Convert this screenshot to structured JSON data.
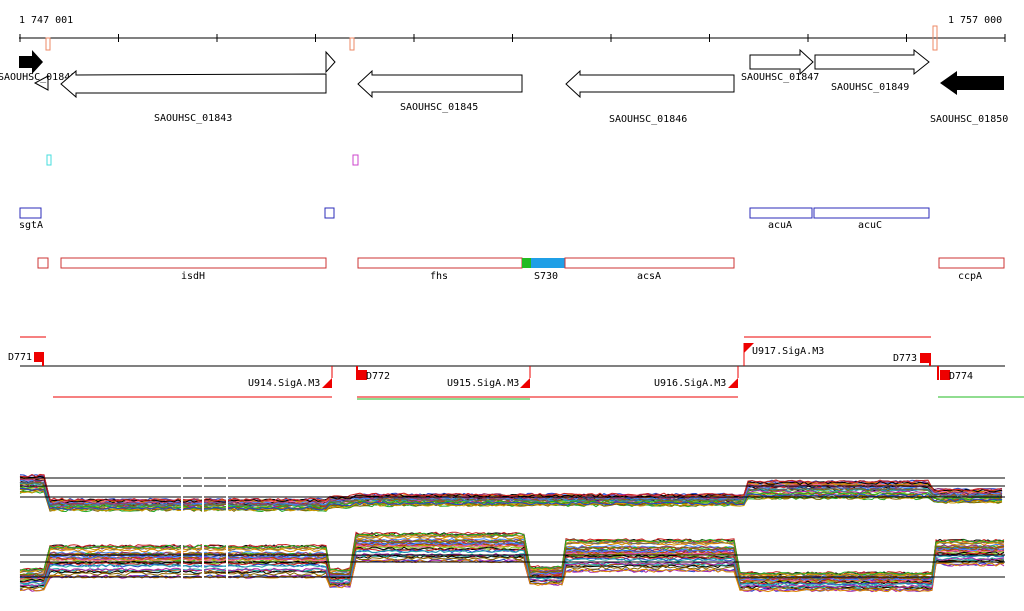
{
  "ruler": {
    "start_label": "1 747 001",
    "end_label": "1 757 000"
  },
  "genes": [
    {
      "name": "SAOUHSC_01840",
      "strand": "-"
    },
    {
      "name": "SAOUHSC_01843",
      "strand": "-"
    },
    {
      "name": "SAOUHSC_01845",
      "strand": "-"
    },
    {
      "name": "SAOUHSC_01846",
      "strand": "-"
    },
    {
      "name": "SAOUHSC_01847",
      "strand": "+"
    },
    {
      "name": "SAOUHSC_01849",
      "strand": "+"
    },
    {
      "name": "SAOUHSC_01850",
      "strand": "-"
    }
  ],
  "blue_features": [
    {
      "label": "sgtA"
    },
    {
      "label": ""
    },
    {
      "label": "acuA"
    },
    {
      "label": "acuC"
    }
  ],
  "red_features": [
    {
      "label": ""
    },
    {
      "label": "isdH"
    },
    {
      "label": "fhs"
    },
    {
      "label": "S730"
    },
    {
      "label": "acsA"
    },
    {
      "label": "ccpA"
    }
  ],
  "segments": [
    {
      "label": "D771"
    },
    {
      "label": "D772"
    },
    {
      "label": "U914.SigA.M3"
    },
    {
      "label": "U915.SigA.M3"
    },
    {
      "label": "U916.SigA.M3"
    },
    {
      "label": "U917.SigA.M3"
    },
    {
      "label": "D773"
    },
    {
      "label": "D774"
    }
  ],
  "colors": {
    "gene_solid": "#000000",
    "feature_blue": "#2b2bb8",
    "feature_red": "#cc3333",
    "segment_red": "#ee0000",
    "green_bar": "#22bb22",
    "blue_bar": "#1f9fe6",
    "cyan_mark": "#44dddd",
    "magenta_mark": "#cc44cc"
  }
}
